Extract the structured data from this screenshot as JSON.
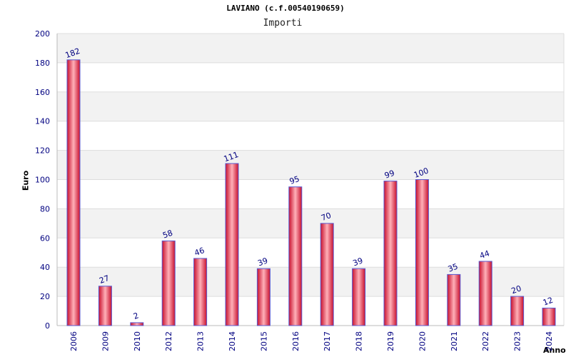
{
  "chart_data": {
    "type": "bar",
    "title": "LAVIANO (c.f.00540190659)",
    "subtitle": "Importi",
    "ylabel": "Euro",
    "xlabel": "Anno",
    "categories": [
      "2006",
      "2009",
      "2010",
      "2012",
      "2013",
      "2014",
      "2015",
      "2016",
      "2017",
      "2018",
      "2019",
      "2020",
      "2021",
      "2022",
      "2023",
      "2024"
    ],
    "values": [
      182,
      27,
      2,
      58,
      46,
      111,
      39,
      95,
      70,
      39,
      99,
      100,
      35,
      44,
      20,
      12
    ],
    "data_labels": [
      "182",
      "27",
      "2",
      "58",
      "46",
      "111",
      "39",
      "95",
      "70",
      "39",
      "99",
      "100",
      "35",
      "44",
      "20",
      "12"
    ],
    "ylim": [
      0,
      200
    ],
    "yticks": [
      "0",
      "20",
      "40",
      "60",
      "80",
      "100",
      "120",
      "140",
      "160",
      "180",
      "200"
    ],
    "grid": true,
    "colors": {
      "bar_edge": "#c8102e",
      "bar_mid": "#ffb0b8",
      "bar_outline": "#5a5ad0",
      "label": "#000080",
      "band": "#f2f2f2",
      "grid": "#dddddd"
    }
  }
}
